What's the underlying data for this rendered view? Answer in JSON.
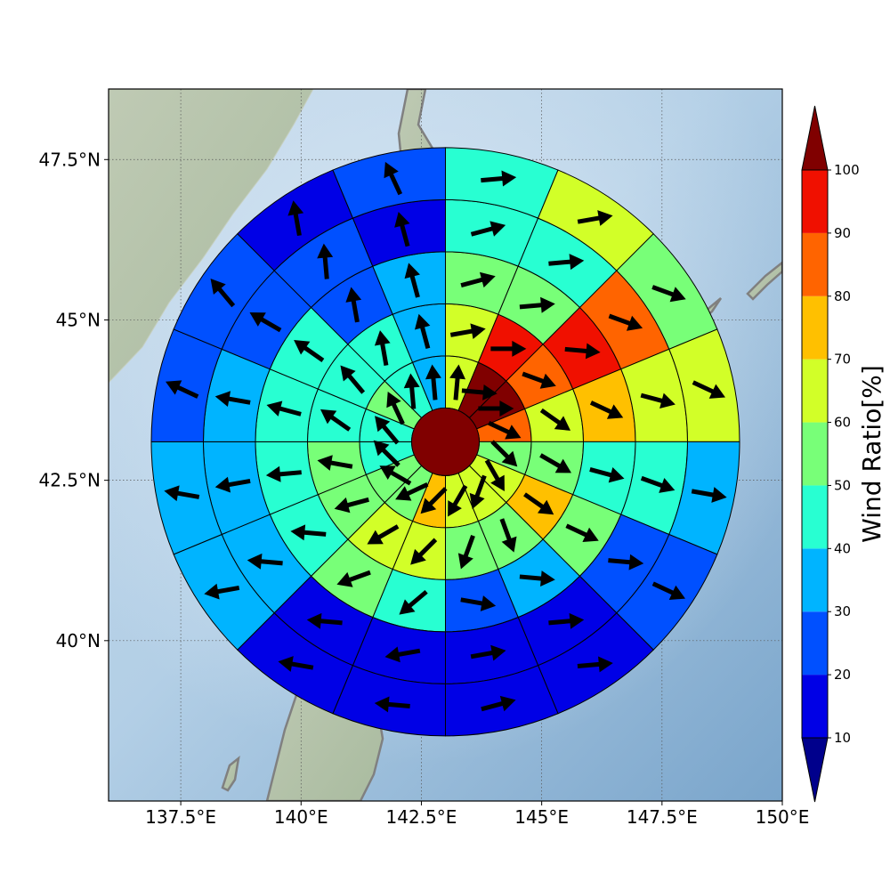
{
  "chart_data": {
    "type": "heatmap",
    "subtype": "polar-wind-ratio-map",
    "title": "",
    "map": {
      "lon_range": [
        136.0,
        150.0
      ],
      "lat_range": [
        37.5,
        48.6
      ],
      "x_ticks": [
        {
          "value": 137.5,
          "label": "137.5°E"
        },
        {
          "value": 140.0,
          "label": "140°E"
        },
        {
          "value": 142.5,
          "label": "142.5°E"
        },
        {
          "value": 145.0,
          "label": "145°E"
        },
        {
          "value": 147.5,
          "label": "147.5°E"
        },
        {
          "value": 150.0,
          "label": "150°E"
        }
      ],
      "y_ticks": [
        {
          "value": 40.0,
          "label": "40°N"
        },
        {
          "value": 42.5,
          "label": "42.5°N"
        },
        {
          "value": 45.0,
          "label": "45°N"
        },
        {
          "value": 47.5,
          "label": "47.5°N"
        }
      ],
      "grid": true,
      "background": "shaded relief with coastlines"
    },
    "polar_grid": {
      "center_lon": 143.0,
      "center_lat": 43.1,
      "n_sectors": 16,
      "sectors_clockwise_from_north": true,
      "center_value": 100,
      "rings": [
        {
          "ring": 1,
          "values": [
            60,
            100,
            100,
            85,
            55,
            65,
            65,
            60,
            70,
            55,
            55,
            45,
            45,
            55,
            45,
            35
          ]
        },
        {
          "ring": 2,
          "values": [
            65,
            95,
            85,
            65,
            55,
            70,
            55,
            50,
            65,
            60,
            55,
            50,
            45,
            45,
            45,
            35
          ]
        },
        {
          "ring": 3,
          "values": [
            55,
            55,
            95,
            75,
            45,
            55,
            35,
            25,
            45,
            50,
            45,
            45,
            45,
            45,
            25,
            35
          ]
        },
        {
          "ring": 4,
          "values": [
            45,
            45,
            85,
            65,
            45,
            25,
            15,
            15,
            15,
            15,
            35,
            35,
            35,
            25,
            25,
            15
          ]
        },
        {
          "ring": 5,
          "values": [
            45,
            65,
            55,
            65,
            35,
            20,
            10,
            15,
            15,
            15,
            35,
            35,
            25,
            25,
            15,
            25
          ]
        }
      ],
      "arrows_deg_clockwise_from_north": [
        [
          5,
          95,
          90,
          115,
          135,
          150,
          200,
          210,
          225,
          245,
          300,
          315,
          320,
          335,
          355,
          355
        ],
        [
          80,
          90,
          110,
          125,
          120,
          125,
          160,
          200,
          225,
          240,
          255,
          280,
          305,
          320,
          350,
          345
        ],
        [
          75,
          85,
          95,
          115,
          105,
          115,
          95,
          100,
          230,
          250,
          275,
          265,
          285,
          305,
          350,
          345
        ],
        [
          75,
          85,
          110,
          105,
          110,
          95,
          85,
          80,
          260,
          275,
          275,
          260,
          280,
          300,
          355,
          345
        ],
        [
          85,
          80,
          110,
          115,
          100,
          115,
          85,
          75,
          275,
          280,
          260,
          280,
          295,
          320,
          350,
          335
        ]
      ]
    },
    "colorbar": {
      "label": "Wind Ratio[%]",
      "levels": [
        10,
        20,
        30,
        40,
        50,
        60,
        70,
        80,
        90,
        100
      ],
      "tick_labels": [
        "10",
        "20",
        "30",
        "40",
        "50",
        "60",
        "70",
        "80",
        "90",
        "100"
      ],
      "colors": [
        "#0000e6",
        "#0050ff",
        "#00b4ff",
        "#28ffd2",
        "#78ff78",
        "#d2ff28",
        "#ffc000",
        "#ff6400",
        "#f01000"
      ],
      "under_color": "#00008c",
      "over_color": "#800000",
      "extend": "both"
    }
  }
}
